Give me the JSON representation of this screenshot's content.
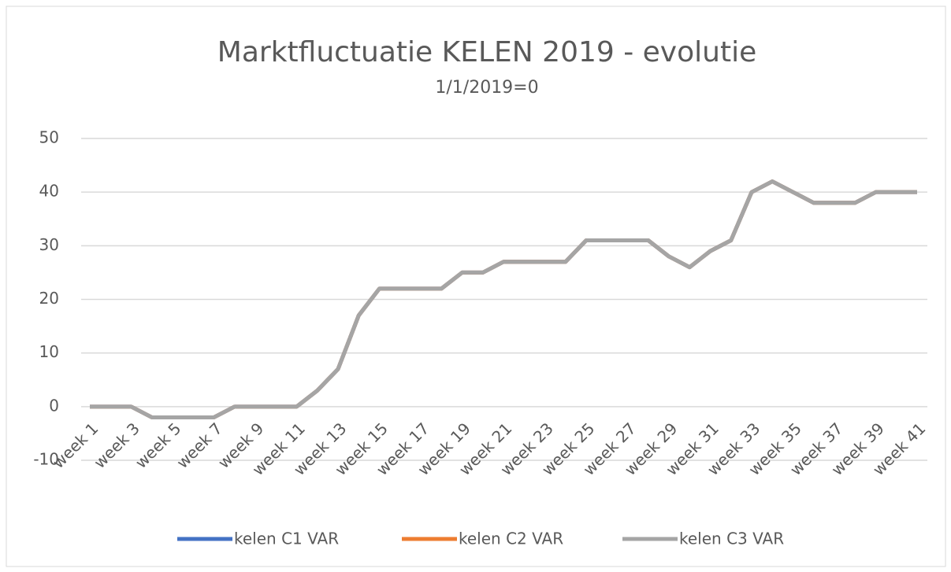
{
  "chart_data": {
    "type": "line",
    "title": "Marktfluctuatie KELEN 2019 - evolutie",
    "subtitle": "1/1/2019=0",
    "categories": [
      "week 1",
      null,
      "week 3",
      null,
      "week 5",
      null,
      "week 7",
      null,
      "week 9",
      null,
      "week 11",
      null,
      "week 13",
      null,
      "week 15",
      null,
      "week 17",
      null,
      "week 19",
      null,
      "week 21",
      null,
      "week 23",
      null,
      "week 25",
      null,
      "week 27",
      null,
      "week 29",
      null,
      "week 31",
      null,
      "week 33",
      null,
      "week 35",
      null,
      "week 37",
      null,
      "week 39",
      null,
      "week 41"
    ],
    "series": [
      {
        "name": "kelen C1 VAR",
        "color": "#4472c4",
        "values": [
          0,
          0,
          0,
          -2,
          -2,
          -2,
          -2,
          0,
          0,
          0,
          0,
          3,
          7,
          17,
          22,
          22,
          22,
          22,
          25,
          25,
          27,
          27,
          27,
          27,
          31,
          31,
          31,
          31,
          28,
          26,
          29,
          31,
          40,
          42,
          40,
          38,
          38,
          38,
          40,
          40,
          40
        ]
      },
      {
        "name": "kelen C2 VAR",
        "color": "#ed7d31",
        "values": [
          0,
          0,
          0,
          -2,
          -2,
          -2,
          -2,
          0,
          0,
          0,
          0,
          3,
          7,
          17,
          22,
          22,
          22,
          22,
          25,
          25,
          27,
          27,
          27,
          27,
          31,
          31,
          31,
          31,
          28,
          26,
          29,
          31,
          40,
          42,
          40,
          38,
          38,
          38,
          40,
          40,
          40
        ]
      },
      {
        "name": "kelen C3 VAR",
        "color": "#a5a5a5",
        "values": [
          0,
          0,
          0,
          -2,
          -2,
          -2,
          -2,
          0,
          0,
          0,
          0,
          3,
          7,
          17,
          22,
          22,
          22,
          22,
          25,
          25,
          27,
          27,
          27,
          27,
          31,
          31,
          31,
          31,
          28,
          26,
          29,
          31,
          40,
          42,
          40,
          38,
          38,
          38,
          40,
          40,
          40
        ]
      }
    ],
    "ylim": [
      -10,
      50
    ],
    "yticks": [
      -10,
      0,
      10,
      20,
      30,
      40,
      50
    ],
    "grid": true,
    "legend": "bottom"
  }
}
